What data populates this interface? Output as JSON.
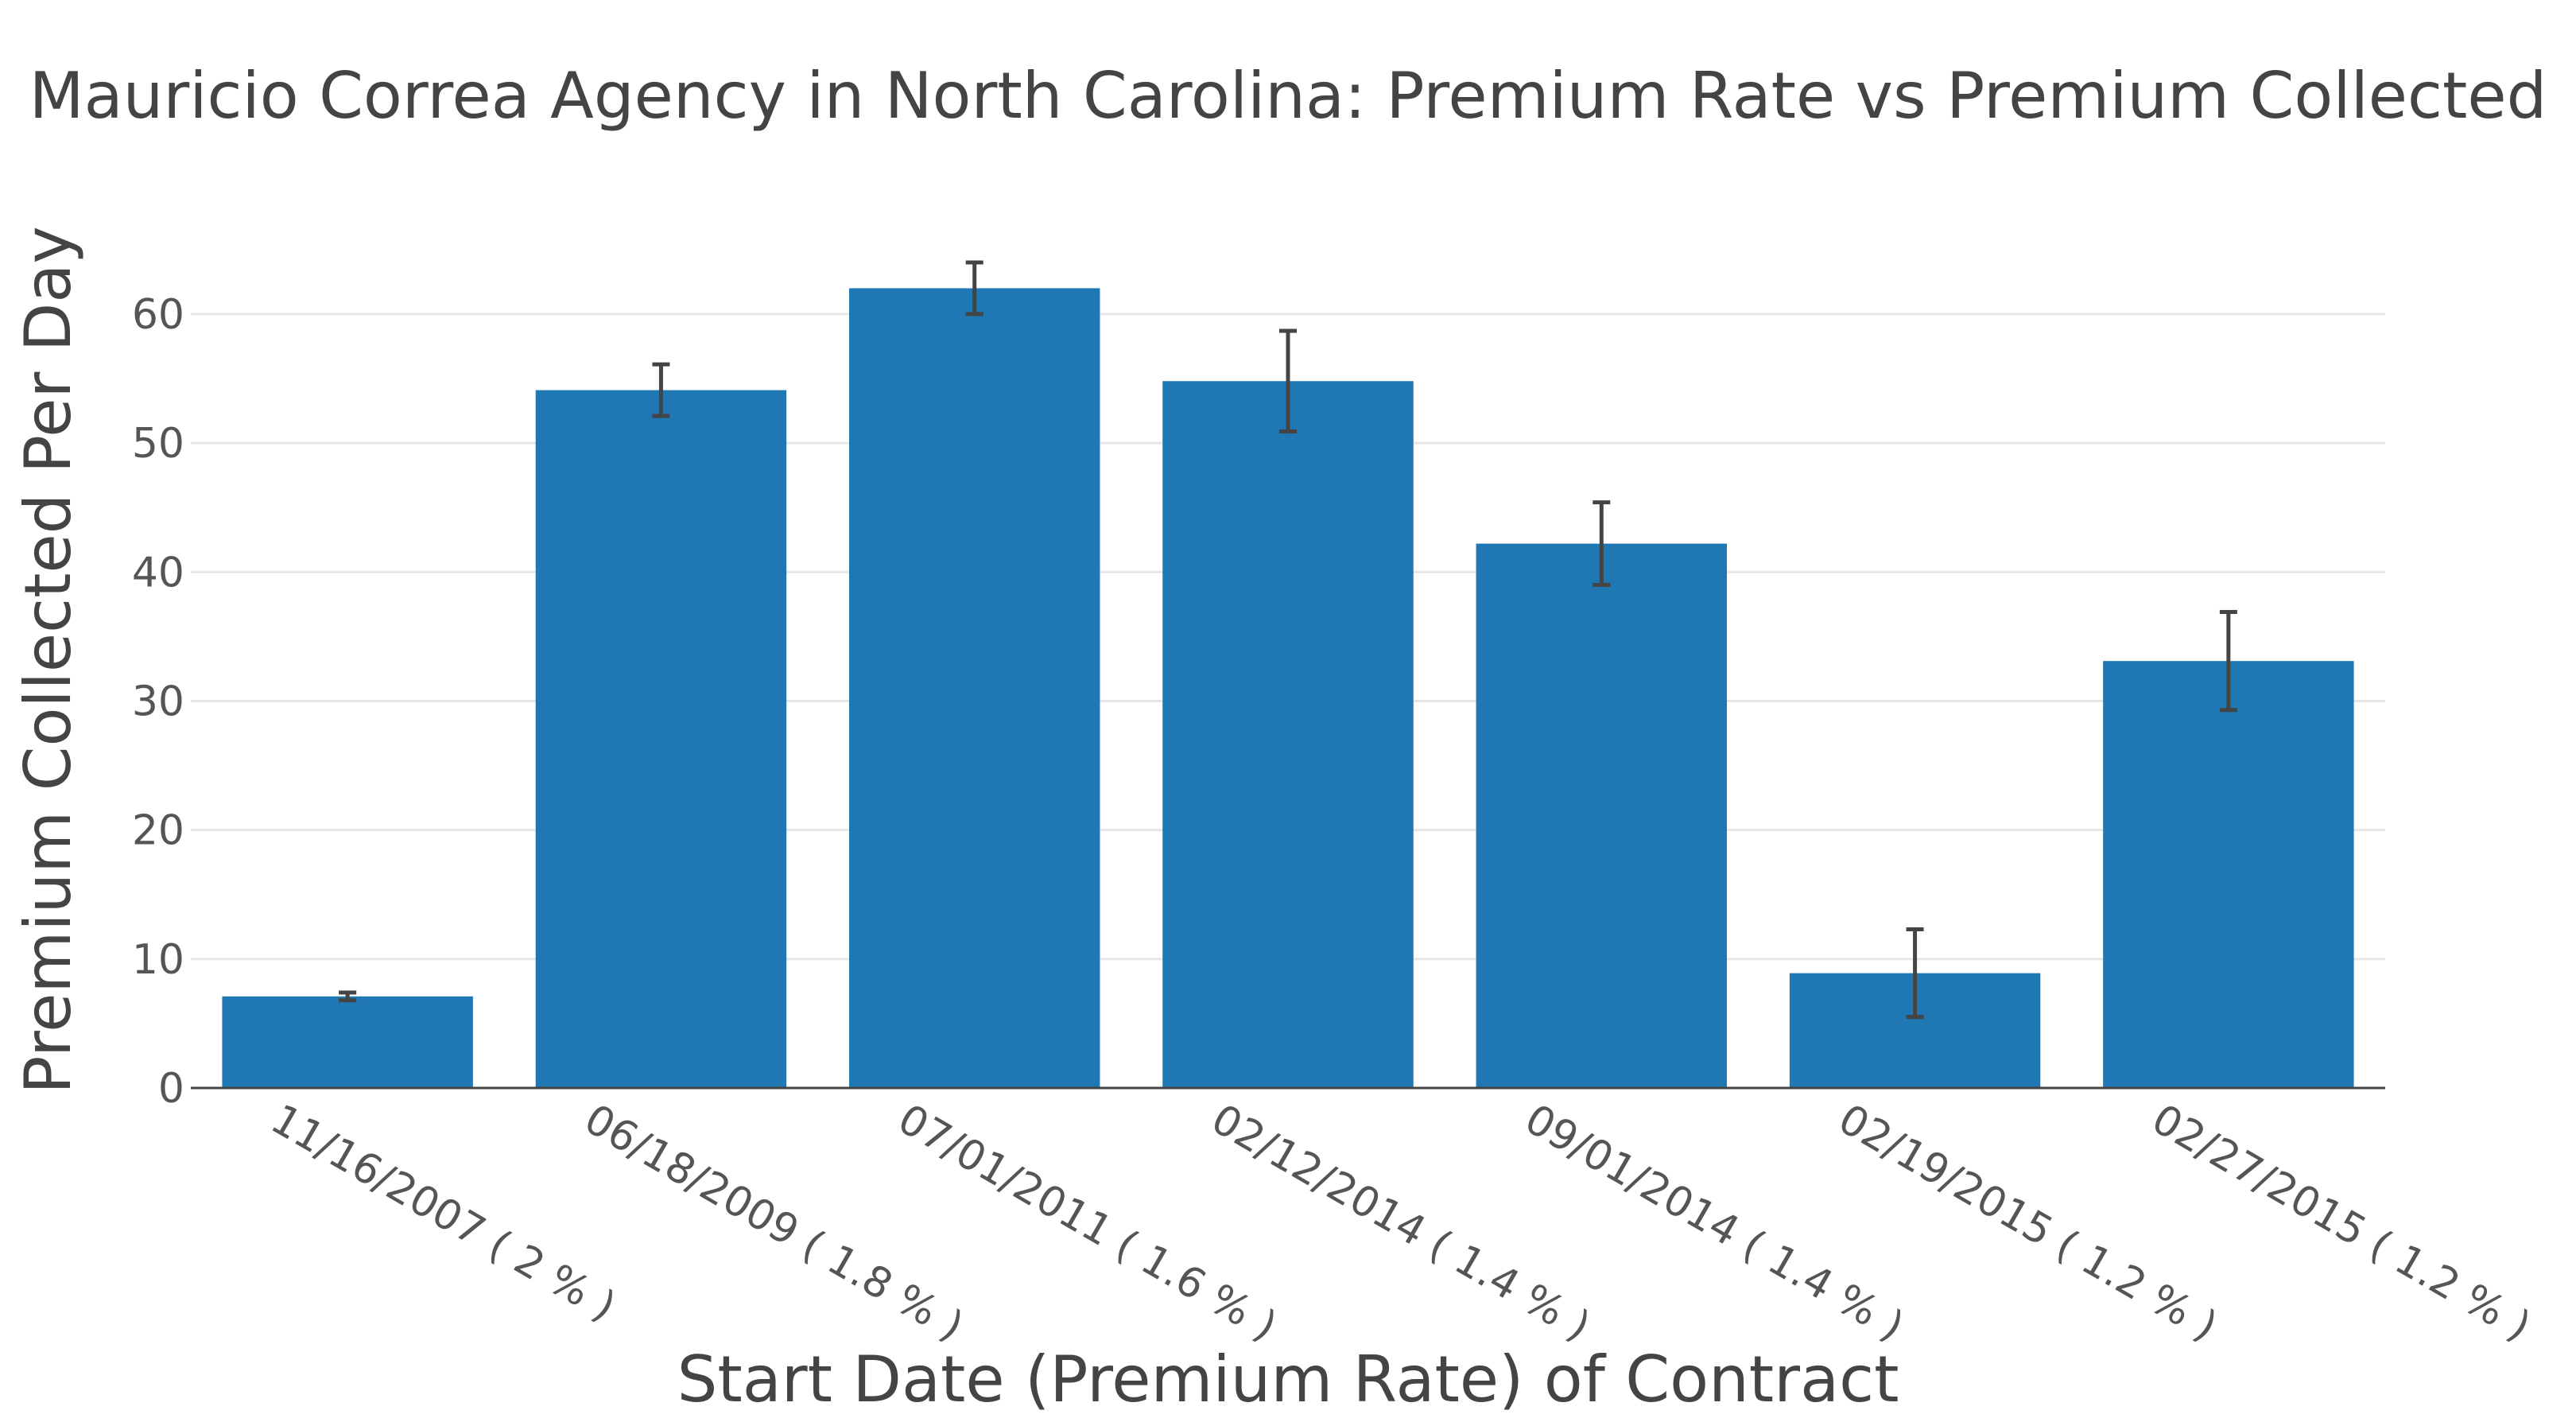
{
  "chart_data": {
    "type": "bar",
    "title": "Mauricio Correa Agency in North Carolina: Premium Rate vs Premium Collected",
    "xlabel": "Start Date (Premium Rate) of Contract",
    "ylabel": "Premium Collected Per Day",
    "categories": [
      "11/16/2007 ( 2 % )",
      "06/18/2009 ( 1.8 % )",
      "07/01/2011 ( 1.6 % )",
      "02/12/2014 ( 1.4 % )",
      "09/01/2014 ( 1.4 % )",
      "02/19/2015 ( 1.2 % )",
      "02/27/2015 ( 1.2 % )"
    ],
    "values": [
      7.1,
      54.1,
      62.0,
      54.8,
      42.2,
      8.9,
      33.1
    ],
    "error": [
      0.3,
      2.0,
      2.0,
      3.9,
      3.2,
      3.4,
      3.8
    ],
    "ylim": [
      0,
      64
    ],
    "yticks": [
      0,
      10,
      20,
      30,
      40,
      50,
      60
    ],
    "grid": true,
    "bar_color": "#1f77b4",
    "error_color": "#444444"
  }
}
